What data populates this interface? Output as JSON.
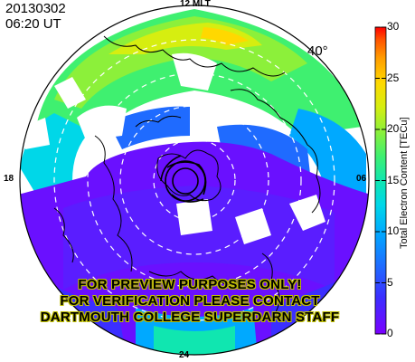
{
  "header": {
    "date": "20130302",
    "time": "06:20 UT"
  },
  "mlt_labels": {
    "top": "12 MLT",
    "left": "18",
    "right": "06",
    "bottom": "24"
  },
  "latitude_label": "40°",
  "colorbar": {
    "title": "Total Electron Content [TECu]",
    "ticks": [
      "0",
      "5",
      "10",
      "15",
      "20",
      "25",
      "30"
    ],
    "colors": [
      "#7a00ff",
      "#3b2fff",
      "#1f6bff",
      "#00a9ff",
      "#00d7e8",
      "#10e6b0",
      "#3ff070",
      "#8cf03a",
      "#d6ee10",
      "#ffd800",
      "#ff9c00",
      "#ff5200",
      "#ff0000"
    ]
  },
  "watermark": {
    "line1": "FOR PREVIEW PURPOSES ONLY!",
    "line2": "FOR VERIFICATION PLEASE CONTACT",
    "line3": "DARTMOUTH COLLEGE SUPERDARN STAFF"
  }
}
